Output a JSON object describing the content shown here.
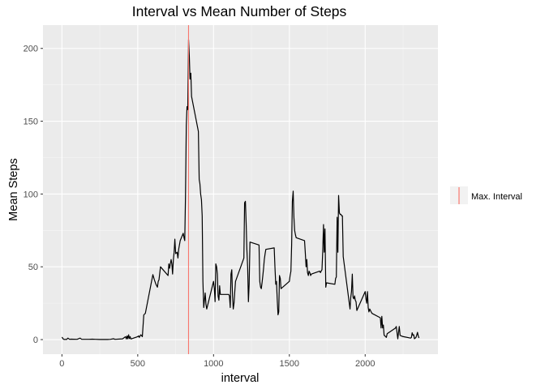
{
  "chart_data": {
    "type": "line",
    "title": "Interval vs Mean Number of Steps",
    "xlabel": "interval",
    "ylabel": "Mean Steps",
    "xlim": [
      -125,
      2480
    ],
    "ylim": [
      -10,
      216
    ],
    "x_ticks": [
      0,
      500,
      1000,
      1500,
      2000
    ],
    "y_ticks": [
      0,
      50,
      100,
      150,
      200
    ],
    "grid": true,
    "legend": {
      "position": "right",
      "entries": [
        {
          "label": "Max. Interval",
          "color": "#f8766d"
        }
      ]
    },
    "series": [
      {
        "color": "#000000",
        "x": [
          0,
          10,
          15,
          20,
          30,
          40,
          50,
          60,
          100,
          120,
          130,
          150,
          180,
          200,
          220,
          250,
          300,
          320,
          340,
          350,
          400,
          420,
          425,
          430,
          435,
          440,
          445,
          450,
          455,
          500,
          505,
          510,
          520,
          525,
          530,
          540,
          550,
          600,
          610,
          620,
          625,
          630,
          635,
          640,
          650,
          700,
          705,
          710,
          720,
          725,
          730,
          735,
          740,
          745,
          750,
          760,
          765,
          770,
          780,
          800,
          805,
          810,
          815,
          820,
          825,
          830,
          835,
          840,
          845,
          850,
          855,
          900,
          905,
          910,
          915,
          920,
          925,
          930,
          935,
          945,
          950,
          955,
          1000,
          1005,
          1010,
          1015,
          1020,
          1025,
          1030,
          1035,
          1040,
          1045,
          1100,
          1105,
          1110,
          1115,
          1120,
          1125,
          1130,
          1135,
          1140,
          1145,
          1200,
          1205,
          1210,
          1215,
          1220,
          1225,
          1230,
          1235,
          1240,
          1300,
          1305,
          1310,
          1315,
          1320,
          1325,
          1330,
          1335,
          1340,
          1345,
          1400,
          1405,
          1410,
          1415,
          1420,
          1425,
          1430,
          1435,
          1440,
          1445,
          1500,
          1505,
          1510,
          1515,
          1520,
          1525,
          1530,
          1535,
          1540,
          1545,
          1600,
          1605,
          1610,
          1615,
          1620,
          1625,
          1630,
          1635,
          1640,
          1645,
          1700,
          1705,
          1710,
          1715,
          1720,
          1725,
          1730,
          1735,
          1740,
          1745,
          1800,
          1805,
          1810,
          1815,
          1820,
          1825,
          1830,
          1835,
          1840,
          1845,
          1850,
          1855,
          1900,
          1905,
          1910,
          1915,
          1920,
          1925,
          1930,
          1935,
          1940,
          1945,
          2000,
          2005,
          2010,
          2015,
          2020,
          2025,
          2030,
          2035,
          2040,
          2045,
          2100,
          2105,
          2110,
          2115,
          2120,
          2125,
          2130,
          2135,
          2140,
          2145,
          2200,
          2205,
          2210,
          2215,
          2220,
          2225,
          2230,
          2235,
          2240,
          2245,
          2300,
          2305,
          2310,
          2315,
          2320,
          2325,
          2330,
          2335,
          2340,
          2345,
          2350,
          2355
        ],
        "values": [
          1.7,
          0.3,
          0.1,
          0.2,
          0.1,
          1.0,
          0.2,
          0.3,
          0.2,
          1.0,
          0.2,
          0.2,
          0.2,
          0.3,
          0.2,
          0.1,
          0.1,
          0.2,
          0.6,
          0.2,
          0.5,
          2.0,
          0.4,
          2.5,
          0.5,
          3.3,
          0.7,
          2.0,
          0.4,
          2.0,
          2.6,
          1.5,
          3.3,
          2.8,
          2.0,
          17.0,
          18.0,
          44.6,
          41.0,
          38.0,
          37.0,
          36.0,
          40.0,
          41.0,
          50.0,
          44.0,
          52.0,
          49.0,
          55.0,
          52.0,
          45.0,
          55.0,
          60.0,
          69.0,
          59.0,
          60.0,
          56.0,
          62.0,
          68.0,
          73.0,
          70.0,
          68.0,
          98.0,
          147.0,
          160.0,
          158.0,
          206.0,
          195.0,
          179.0,
          183.0,
          167.0,
          143.0,
          110.0,
          107.0,
          100.0,
          96.0,
          85.0,
          40.0,
          22.0,
          32.0,
          24.0,
          21.0,
          40.0,
          35.0,
          26.0,
          52.0,
          50.0,
          45.0,
          30.0,
          27.0,
          37.0,
          31.0,
          31.0,
          30.0,
          22.0,
          45.0,
          48.0,
          30.0,
          21.0,
          25.0,
          33.0,
          40.0,
          56.0,
          94.0,
          95.0,
          80.0,
          62.0,
          49.0,
          26.0,
          38.0,
          67.0,
          65.0,
          40.0,
          36.0,
          35.0,
          39.0,
          44.0,
          49.0,
          55.0,
          59.0,
          62.0,
          63.0,
          50.0,
          38.0,
          40.0,
          28.0,
          17.0,
          19.0,
          44.0,
          42.0,
          35.0,
          40.0,
          44.0,
          47.0,
          65.0,
          95.0,
          102.0,
          84.0,
          75.0,
          72.0,
          70.0,
          68.0,
          60.0,
          50.0,
          55.0,
          46.0,
          44.0,
          47.0,
          46.0,
          44.0,
          45.0,
          47.0,
          46.0,
          47.0,
          48.0,
          60.0,
          79.0,
          60.0,
          76.0,
          36.0,
          39.0,
          38.0,
          42.0,
          43.0,
          84.0,
          60.0,
          99.0,
          87.0,
          86.0,
          86.0,
          85.0,
          85.0,
          57.0,
          21.0,
          29.0,
          33.0,
          45.0,
          29.0,
          28.0,
          30.0,
          27.0,
          26.0,
          20.0,
          33.0,
          28.0,
          25.0,
          33.0,
          22.0,
          19.0,
          21.0,
          20.0,
          19.0,
          18.0,
          15.0,
          8.0,
          16.0,
          8.0,
          10.0,
          3.0,
          2.5,
          2.0,
          1.5,
          4.0,
          8.0,
          9.0,
          5.0,
          0.5,
          5.0,
          9.0,
          3.0,
          2.6,
          2.5,
          2.2,
          1.0,
          1.5,
          4.7,
          3.0,
          3.3,
          0.6,
          1.0,
          1.5,
          3.0,
          5.0,
          2.6,
          1.1
        ]
      }
    ],
    "reference_lines": [
      {
        "orientation": "vertical",
        "x": 835,
        "label": "Max. Interval",
        "color": "#f8766d"
      }
    ]
  }
}
